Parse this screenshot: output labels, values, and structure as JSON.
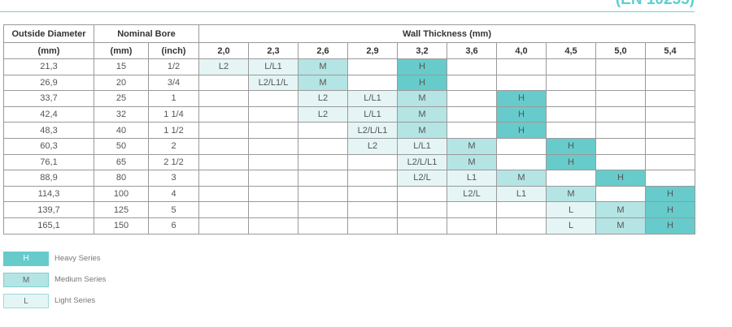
{
  "page": {
    "heading": "(EN 10255)"
  },
  "table": {
    "headers": {
      "outside_diameter": "Outside Diameter",
      "nominal_bore": "Nominal Bore",
      "wall_thickness": "Wall Thickness (mm)",
      "od_unit": "(mm)",
      "bore_mm_unit": "(mm)",
      "bore_inch_unit": "(inch)"
    },
    "thickness_columns": [
      "2,0",
      "2,3",
      "2,6",
      "2,9",
      "3,2",
      "3,6",
      "4,0",
      "4,5",
      "5,0",
      "5,4"
    ],
    "rows": [
      {
        "od": "21,3",
        "mm": "15",
        "inch": "1/2",
        "cells": [
          [
            "L",
            "L2"
          ],
          [
            "L",
            "L/L1"
          ],
          [
            "M",
            "M"
          ],
          [
            "",
            ""
          ],
          [
            "H",
            "H"
          ],
          [
            "",
            ""
          ],
          [
            "",
            ""
          ],
          [
            "",
            ""
          ],
          [
            "",
            ""
          ],
          [
            "",
            ""
          ]
        ]
      },
      {
        "od": "26,9",
        "mm": "20",
        "inch": "3/4",
        "cells": [
          [
            "",
            ""
          ],
          [
            "L",
            "L2/L1/L"
          ],
          [
            "M",
            "M"
          ],
          [
            "",
            ""
          ],
          [
            "H",
            "H"
          ],
          [
            "",
            ""
          ],
          [
            "",
            ""
          ],
          [
            "",
            ""
          ],
          [
            "",
            ""
          ],
          [
            "",
            ""
          ]
        ]
      },
      {
        "od": "33,7",
        "mm": "25",
        "inch": "1",
        "cells": [
          [
            "",
            ""
          ],
          [
            "",
            ""
          ],
          [
            "L",
            "L2"
          ],
          [
            "L",
            "L/L1"
          ],
          [
            "M",
            "M"
          ],
          [
            "",
            ""
          ],
          [
            "H",
            "H"
          ],
          [
            "",
            ""
          ],
          [
            "",
            ""
          ],
          [
            "",
            ""
          ]
        ]
      },
      {
        "od": "42,4",
        "mm": "32",
        "inch": "1 1/4",
        "cells": [
          [
            "",
            ""
          ],
          [
            "",
            ""
          ],
          [
            "L",
            "L2"
          ],
          [
            "L",
            "L/L1"
          ],
          [
            "M",
            "M"
          ],
          [
            "",
            ""
          ],
          [
            "H",
            "H"
          ],
          [
            "",
            ""
          ],
          [
            "",
            ""
          ],
          [
            "",
            ""
          ]
        ]
      },
      {
        "od": "48,3",
        "mm": "40",
        "inch": "1 1/2",
        "cells": [
          [
            "",
            ""
          ],
          [
            "",
            ""
          ],
          [
            "",
            ""
          ],
          [
            "L",
            "L2/L/L1"
          ],
          [
            "M",
            "M"
          ],
          [
            "",
            ""
          ],
          [
            "H",
            "H"
          ],
          [
            "",
            ""
          ],
          [
            "",
            ""
          ],
          [
            "",
            ""
          ]
        ]
      },
      {
        "od": "60,3",
        "mm": "50",
        "inch": "2",
        "cells": [
          [
            "",
            ""
          ],
          [
            "",
            ""
          ],
          [
            "",
            ""
          ],
          [
            "L",
            "L2"
          ],
          [
            "L",
            "L/L1"
          ],
          [
            "M",
            "M"
          ],
          [
            "",
            ""
          ],
          [
            "H",
            "H"
          ],
          [
            "",
            ""
          ],
          [
            "",
            ""
          ]
        ]
      },
      {
        "od": "76,1",
        "mm": "65",
        "inch": "2 1/2",
        "cells": [
          [
            "",
            ""
          ],
          [
            "",
            ""
          ],
          [
            "",
            ""
          ],
          [
            "",
            ""
          ],
          [
            "L",
            "L2/L/L1"
          ],
          [
            "M",
            "M"
          ],
          [
            "",
            ""
          ],
          [
            "H",
            "H"
          ],
          [
            "",
            ""
          ],
          [
            "",
            ""
          ]
        ]
      },
      {
        "od": "88,9",
        "mm": "80",
        "inch": "3",
        "cells": [
          [
            "",
            ""
          ],
          [
            "",
            ""
          ],
          [
            "",
            ""
          ],
          [
            "",
            ""
          ],
          [
            "L",
            "L2/L"
          ],
          [
            "L",
            "L1"
          ],
          [
            "M",
            "M"
          ],
          [
            "",
            ""
          ],
          [
            "H",
            "H"
          ],
          [
            "",
            ""
          ]
        ]
      },
      {
        "od": "114,3",
        "mm": "100",
        "inch": "4",
        "cells": [
          [
            "",
            ""
          ],
          [
            "",
            ""
          ],
          [
            "",
            ""
          ],
          [
            "",
            ""
          ],
          [
            "",
            ""
          ],
          [
            "L",
            "L2/L"
          ],
          [
            "L",
            "L1"
          ],
          [
            "M",
            "M"
          ],
          [
            "",
            ""
          ],
          [
            "H",
            "H"
          ]
        ]
      },
      {
        "od": "139,7",
        "mm": "125",
        "inch": "5",
        "cells": [
          [
            "",
            ""
          ],
          [
            "",
            ""
          ],
          [
            "",
            ""
          ],
          [
            "",
            ""
          ],
          [
            "",
            ""
          ],
          [
            "",
            ""
          ],
          [
            "",
            ""
          ],
          [
            "L",
            "L"
          ],
          [
            "M",
            "M"
          ],
          [
            "H",
            "H"
          ]
        ]
      },
      {
        "od": "165,1",
        "mm": "150",
        "inch": "6",
        "cells": [
          [
            "",
            ""
          ],
          [
            "",
            ""
          ],
          [
            "",
            ""
          ],
          [
            "",
            ""
          ],
          [
            "",
            ""
          ],
          [
            "",
            ""
          ],
          [
            "",
            ""
          ],
          [
            "L",
            "L"
          ],
          [
            "M",
            "M"
          ],
          [
            "H",
            "H"
          ]
        ]
      }
    ]
  },
  "legend": [
    {
      "code": "H",
      "label": "Heavy Series"
    },
    {
      "code": "M",
      "label": "Medium Series"
    },
    {
      "code": "L",
      "label": "Light Series"
    }
  ],
  "colors": {
    "heavy": "#67cbcb",
    "medium": "#b5e4e4",
    "light": "#e5f5f5",
    "accent": "#5ccfd0"
  }
}
